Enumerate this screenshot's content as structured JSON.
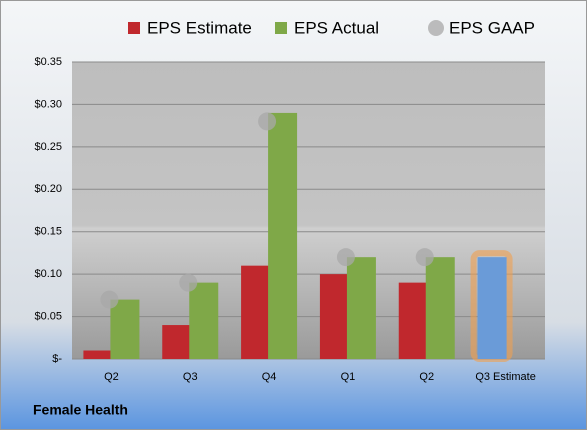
{
  "chart_data": {
    "type": "bar",
    "title": "Female Health",
    "categories": [
      "Q2",
      "Q3",
      "Q4",
      "Q1",
      "Q2",
      "Q3 Estimate"
    ],
    "series": [
      {
        "name": "EPS Estimate",
        "color": "#c0282d",
        "values": [
          0.01,
          0.04,
          0.11,
          0.1,
          0.09,
          0.12
        ],
        "highlight": {
          "index": 5,
          "color": "#6a9bd8",
          "glow": "#f0a050"
        }
      },
      {
        "name": "EPS Actual",
        "color": "#7fa848",
        "values": [
          0.07,
          0.09,
          0.29,
          0.12,
          0.12,
          null
        ]
      },
      {
        "name": "EPS GAAP",
        "color": "#a8a8a8",
        "marker": "circle",
        "values": [
          0.07,
          0.09,
          0.28,
          0.12,
          0.12,
          null
        ]
      }
    ],
    "ylim": [
      0,
      0.35
    ],
    "yticks": [
      {
        "value": 0,
        "label": "$-"
      },
      {
        "value": 0.05,
        "label": "$0.05"
      },
      {
        "value": 0.1,
        "label": "$0.10"
      },
      {
        "value": 0.15,
        "label": "$0.15"
      },
      {
        "value": 0.2,
        "label": "$0.20"
      },
      {
        "value": 0.25,
        "label": "$0.25"
      },
      {
        "value": 0.3,
        "label": "$0.30"
      },
      {
        "value": 0.35,
        "label": "$0.35"
      }
    ],
    "grid": true
  }
}
